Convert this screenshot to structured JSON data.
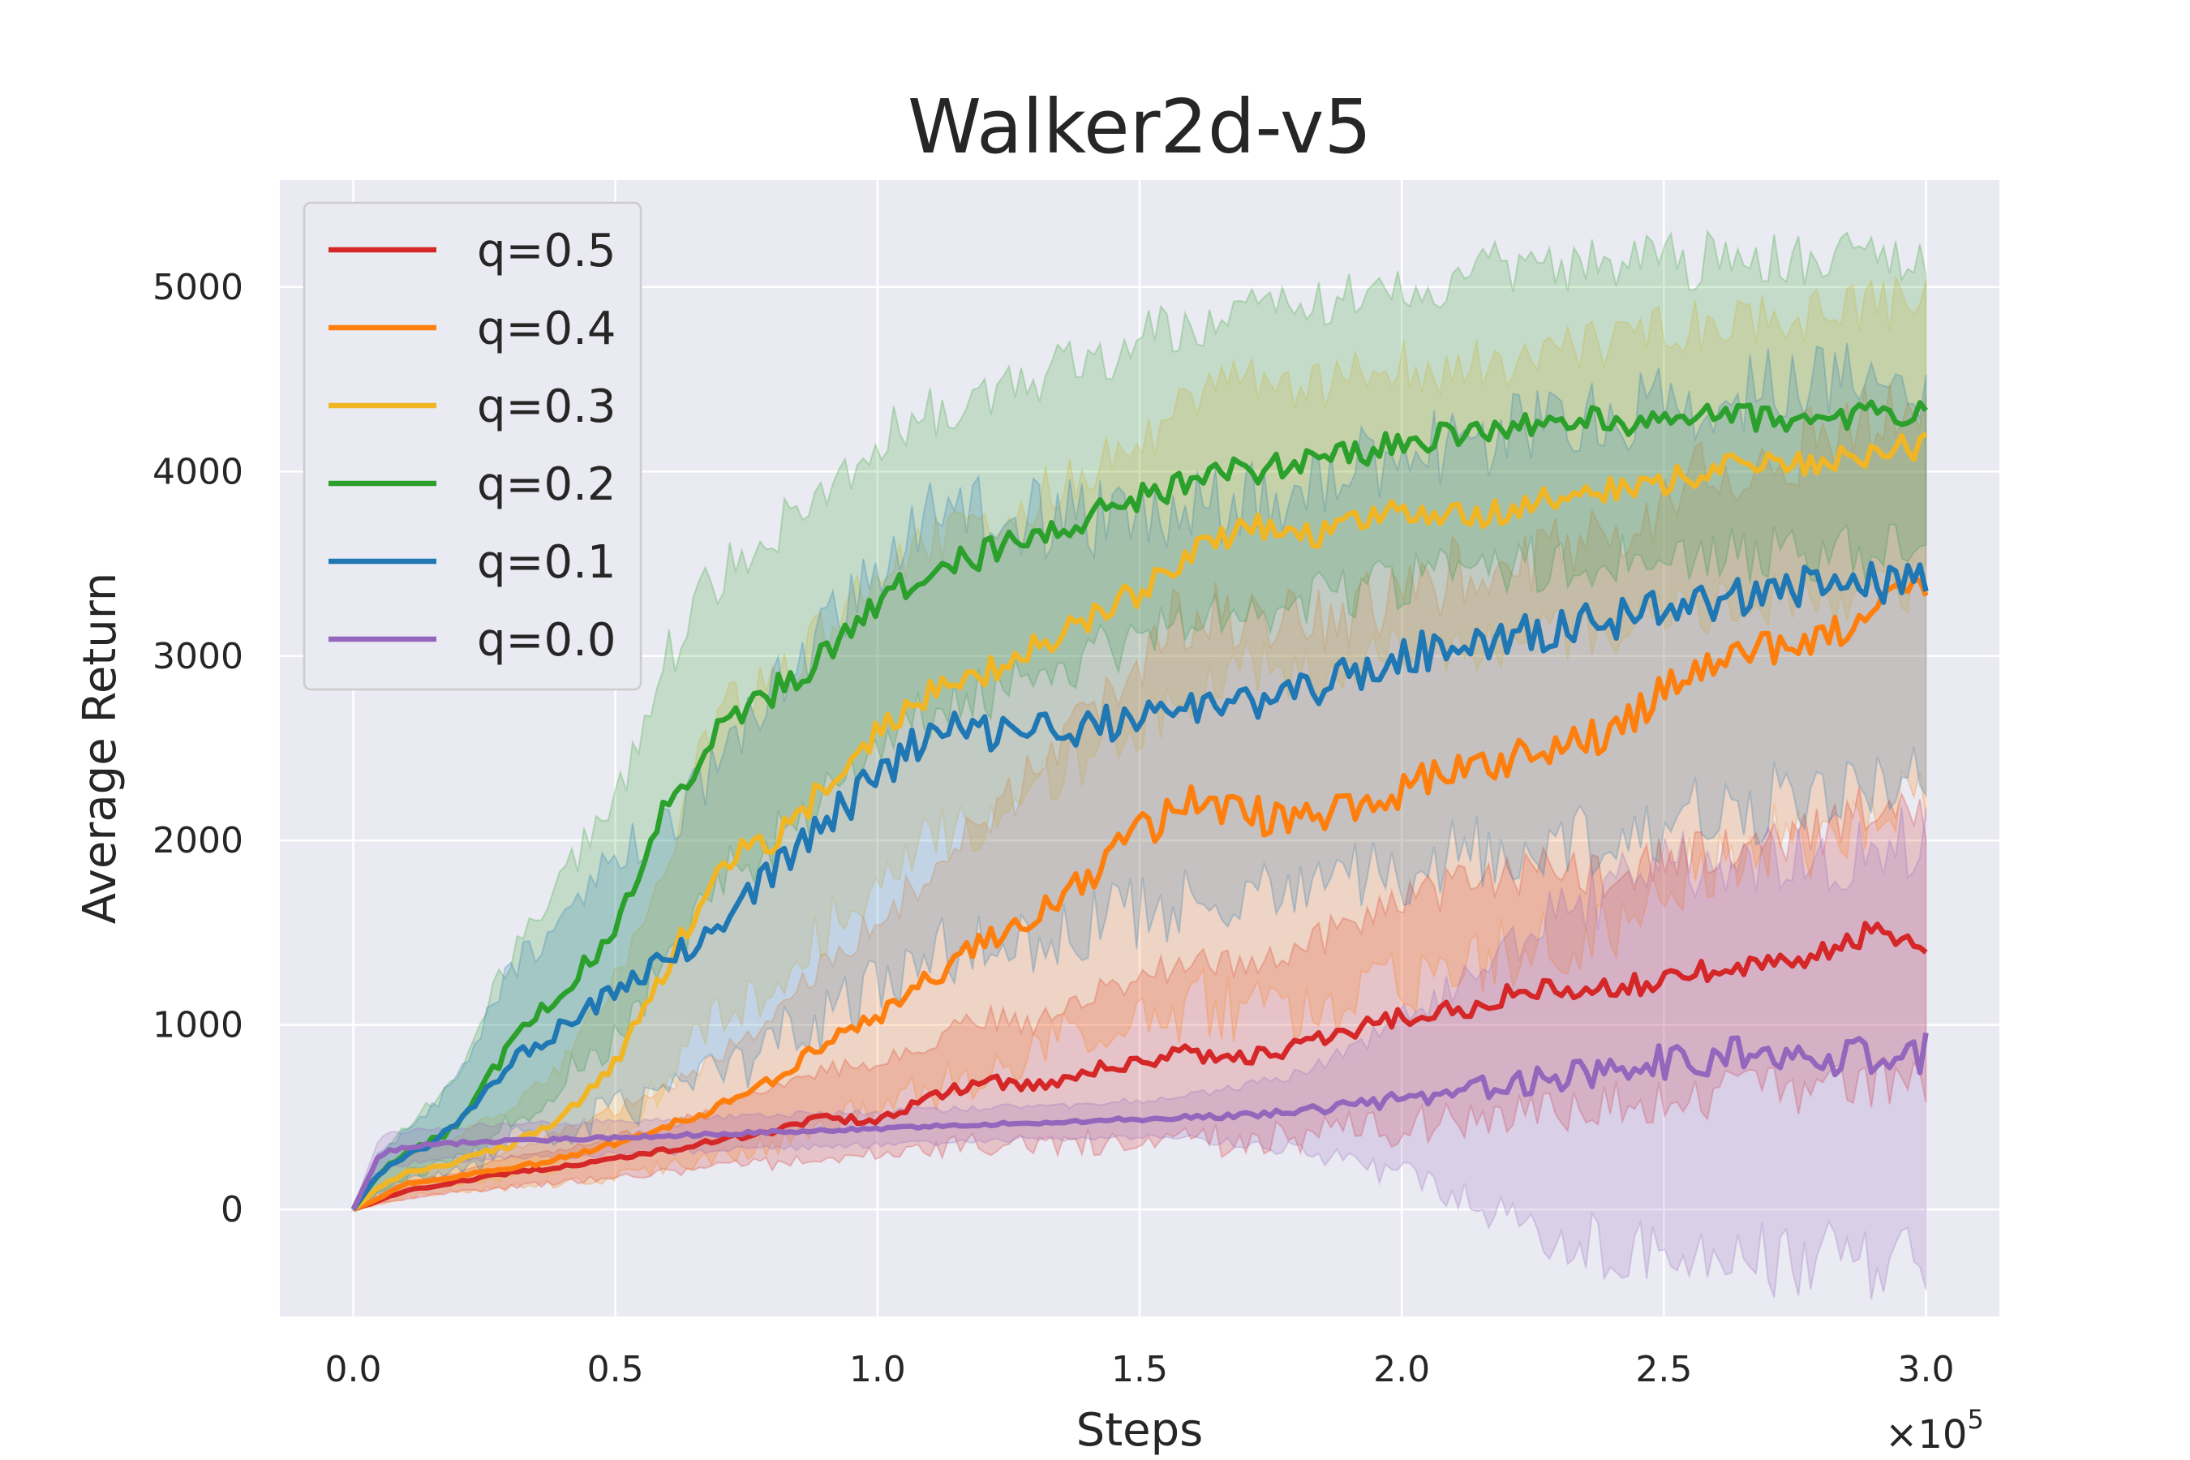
{
  "chart_data": {
    "type": "line",
    "title": "Walker2d-v5",
    "xlabel": "Steps",
    "ylabel": "Average Return",
    "x_scale_text": {
      "base": "×10",
      "exp": "5"
    },
    "xlim": [
      -0.14,
      3.14
    ],
    "ylim": [
      -580,
      5580
    ],
    "x_ticks": [
      0.0,
      0.5,
      1.0,
      1.5,
      2.0,
      2.5,
      3.0
    ],
    "x_tick_labels": [
      "0.0",
      "0.5",
      "1.0",
      "1.5",
      "2.0",
      "2.5",
      "3.0"
    ],
    "y_ticks": [
      0,
      1000,
      2000,
      3000,
      4000,
      5000
    ],
    "y_tick_labels": [
      "0",
      "1000",
      "2000",
      "3000",
      "4000",
      "5000"
    ],
    "grid": true,
    "legend_position": "top-left",
    "x": [
      0,
      0.05,
      0.1,
      0.2,
      0.3,
      0.4,
      0.5,
      0.6,
      0.7,
      0.8,
      0.9,
      1.0,
      1.1,
      1.2,
      1.3,
      1.4,
      1.5,
      1.6,
      1.7,
      1.8,
      1.9,
      2.0,
      2.1,
      2.2,
      2.3,
      2.4,
      2.5,
      2.6,
      2.7,
      2.8,
      2.9,
      3.0
    ],
    "series": [
      {
        "name": "q=0.5",
        "color": "#d62728",
        "values": [
          0,
          50,
          100,
          150,
          200,
          230,
          280,
          320,
          380,
          420,
          500,
          480,
          600,
          700,
          660,
          750,
          800,
          850,
          820,
          870,
          960,
          1050,
          1080,
          1150,
          1200,
          1180,
          1260,
          1300,
          1320,
          1380,
          1500,
          1400
        ],
        "lower": [
          0,
          30,
          60,
          100,
          120,
          150,
          180,
          200,
          230,
          250,
          280,
          300,
          330,
          360,
          350,
          370,
          380,
          380,
          370,
          390,
          420,
          450,
          480,
          500,
          540,
          580,
          600,
          620,
          640,
          620,
          700,
          650
        ],
        "upper": [
          0,
          80,
          150,
          200,
          280,
          330,
          400,
          460,
          560,
          640,
          760,
          780,
          900,
          1050,
          1000,
          1150,
          1250,
          1350,
          1300,
          1400,
          1550,
          1700,
          1750,
          1800,
          1850,
          1800,
          1900,
          1950,
          2000,
          2050,
          2200,
          2150
        ]
      },
      {
        "name": "q=0.4",
        "color": "#ff7f0e",
        "values": [
          0,
          60,
          140,
          180,
          220,
          280,
          360,
          450,
          560,
          700,
          900,
          1050,
          1250,
          1450,
          1600,
          1800,
          2050,
          2200,
          2150,
          2100,
          2200,
          2250,
          2400,
          2450,
          2500,
          2600,
          2800,
          3000,
          3050,
          3100,
          3200,
          3400
        ],
        "lower": [
          0,
          20,
          70,
          100,
          120,
          140,
          180,
          230,
          280,
          350,
          450,
          560,
          650,
          750,
          850,
          950,
          1050,
          1100,
          1100,
          1050,
          1150,
          1200,
          1350,
          1400,
          1450,
          1550,
          1750,
          1900,
          2000,
          2000,
          2100,
          2300
        ],
        "upper": [
          0,
          100,
          210,
          260,
          320,
          420,
          540,
          670,
          840,
          1050,
          1350,
          1550,
          1850,
          2150,
          2350,
          2650,
          3000,
          3250,
          3200,
          3150,
          3250,
          3300,
          3450,
          3500,
          3550,
          3650,
          3850,
          4000,
          4100,
          4150,
          4300,
          4450
        ]
      },
      {
        "name": "q=0.3",
        "color": "#f0b626",
        "values": [
          0,
          120,
          200,
          260,
          350,
          500,
          800,
          1300,
          1900,
          2000,
          2300,
          2600,
          2800,
          2900,
          3050,
          3200,
          3350,
          3550,
          3700,
          3650,
          3700,
          3800,
          3750,
          3800,
          3850,
          3900,
          3950,
          4000,
          4050,
          4050,
          4100,
          4150
        ],
        "lower": [
          0,
          60,
          120,
          150,
          180,
          250,
          400,
          700,
          1100,
          1200,
          1500,
          1800,
          2000,
          2100,
          2300,
          2450,
          2600,
          2800,
          2950,
          2900,
          2950,
          3050,
          3000,
          3050,
          3100,
          3150,
          3200,
          3250,
          3300,
          3300,
          3350,
          3400
        ],
        "upper": [
          0,
          180,
          300,
          400,
          550,
          800,
          1250,
          1950,
          2700,
          2850,
          3150,
          3450,
          3650,
          3750,
          3850,
          4000,
          4150,
          4350,
          4500,
          4450,
          4500,
          4600,
          4550,
          4600,
          4650,
          4700,
          4750,
          4800,
          4850,
          4850,
          4900,
          4950
        ]
      },
      {
        "name": "q=0.2",
        "color": "#2ca02c",
        "values": [
          0,
          200,
          300,
          450,
          900,
          1200,
          1500,
          2200,
          2600,
          2800,
          3000,
          3300,
          3450,
          3550,
          3650,
          3750,
          3850,
          3950,
          4000,
          4050,
          4100,
          4150,
          4200,
          4250,
          4250,
          4280,
          4280,
          4300,
          4300,
          4300,
          4320,
          4320
        ],
        "lower": [
          0,
          100,
          180,
          260,
          500,
          700,
          900,
          1400,
          1800,
          2000,
          2200,
          2500,
          2700,
          2800,
          2900,
          3000,
          3100,
          3200,
          3250,
          3300,
          3350,
          3400,
          3450,
          3500,
          3500,
          3530,
          3530,
          3550,
          3550,
          3550,
          3570,
          3570
        ],
        "upper": [
          0,
          300,
          450,
          700,
          1400,
          1800,
          2200,
          3000,
          3450,
          3650,
          3850,
          4150,
          4300,
          4400,
          4500,
          4600,
          4700,
          4800,
          4850,
          4900,
          4950,
          5000,
          5050,
          5100,
          5100,
          5130,
          5130,
          5150,
          5150,
          5150,
          5170,
          5170
        ]
      },
      {
        "name": "q=0.1",
        "color": "#1f77b4",
        "values": [
          0,
          200,
          280,
          450,
          800,
          1000,
          1200,
          1350,
          1550,
          1850,
          2100,
          2350,
          2550,
          2600,
          2600,
          2620,
          2650,
          2700,
          2750,
          2800,
          2900,
          3000,
          3050,
          3100,
          3150,
          3200,
          3250,
          3300,
          3350,
          3380,
          3400,
          3400
        ],
        "lower": [
          0,
          80,
          150,
          200,
          350,
          450,
          550,
          650,
          750,
          900,
          1050,
          1200,
          1350,
          1450,
          1500,
          1550,
          1600,
          1650,
          1700,
          1750,
          1800,
          1850,
          1900,
          1950,
          2000,
          2050,
          2100,
          2150,
          2200,
          2250,
          2280,
          2300
        ],
        "upper": [
          0,
          320,
          420,
          700,
          1300,
          1600,
          1900,
          2100,
          2400,
          2800,
          3150,
          3500,
          3750,
          3800,
          3750,
          3750,
          3750,
          3800,
          3850,
          3900,
          4000,
          4100,
          4150,
          4200,
          4250,
          4300,
          4350,
          4400,
          4450,
          4480,
          4500,
          4500
        ]
      },
      {
        "name": "q=0.0",
        "color": "#9467bd",
        "values": [
          0,
          300,
          340,
          360,
          370,
          380,
          390,
          400,
          410,
          420,
          430,
          440,
          450,
          460,
          470,
          480,
          490,
          500,
          510,
          530,
          560,
          600,
          640,
          680,
          720,
          760,
          800,
          820,
          830,
          840,
          840,
          850
        ],
        "lower": [
          0,
          200,
          250,
          270,
          280,
          290,
          300,
          310,
          320,
          330,
          340,
          350,
          360,
          370,
          380,
          390,
          390,
          380,
          360,
          320,
          260,
          180,
          80,
          -50,
          -150,
          -220,
          -250,
          -260,
          -260,
          -270,
          -270,
          -280
        ],
        "upper": [
          0,
          400,
          430,
          450,
          460,
          470,
          480,
          490,
          500,
          510,
          520,
          530,
          540,
          550,
          560,
          570,
          590,
          620,
          660,
          740,
          860,
          1020,
          1200,
          1400,
          1590,
          1740,
          1850,
          1900,
          1920,
          1950,
          1950,
          1980
        ]
      }
    ]
  }
}
